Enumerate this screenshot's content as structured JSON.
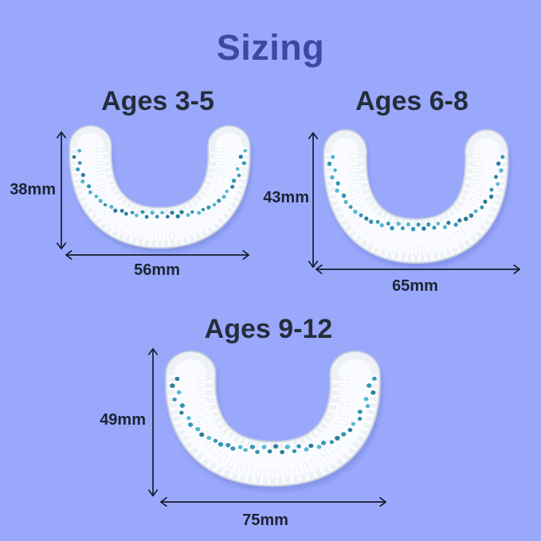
{
  "title": "Sizing",
  "colors": {
    "background": "#99a8fb",
    "title": "#3b49a4",
    "heading": "#252d3b",
    "measurement": "#1b2433",
    "arrow": "#161d2b",
    "body": "#eef2f7",
    "body_outline": "#c7cfdd",
    "body_highlight": "#fbfdff",
    "shadow": "#5560bd",
    "bristle": "#ffffff",
    "dot_primary": "#2b8fae",
    "dot_light": "#4cb4cf",
    "dot_dark": "#1f7695"
  },
  "sizes": [
    {
      "id": "ages-3-5",
      "label": "Ages 3-5",
      "height": "38mm",
      "width": "56mm"
    },
    {
      "id": "ages-6-8",
      "label": "Ages 6-8",
      "height": "43mm",
      "width": "65mm"
    },
    {
      "id": "ages-9-12",
      "label": "Ages 9-12",
      "height": "49mm",
      "width": "75mm"
    }
  ]
}
